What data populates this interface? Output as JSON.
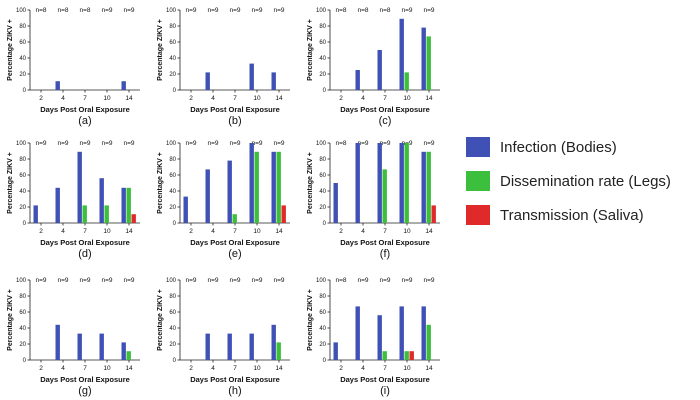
{
  "figure": {
    "panels_note": "3x3 grid of bar charts"
  },
  "colors": {
    "infection": "#3f51b5",
    "dissemination": "#3cbf3c",
    "transmission": "#e02a2a"
  },
  "legend": [
    {
      "key": "infection",
      "label": "Infection (Bodies)"
    },
    {
      "key": "dissemination",
      "label": "Dissemination rate (Legs)"
    },
    {
      "key": "transmission",
      "label": "Transmission (Saliva)"
    }
  ],
  "chart_data": [
    {
      "type": "bar",
      "panel": "(a)",
      "categories": [
        "2",
        "4",
        "7",
        "10",
        "14"
      ],
      "n_labels": [
        "n=8",
        "n=8",
        "n=8",
        "n=9",
        "n=9"
      ],
      "series": [
        {
          "name": "Infection (Bodies)",
          "values": [
            0,
            11,
            0,
            0,
            11
          ]
        },
        {
          "name": "Dissemination rate (Legs)",
          "values": [
            0,
            0,
            0,
            0,
            0
          ]
        },
        {
          "name": "Transmission (Saliva)",
          "values": [
            0,
            0,
            0,
            0,
            0
          ]
        }
      ],
      "xlabel": "Days Post Oral Exposure",
      "ylabel": "Percentage ZIKV +",
      "ylim": [
        0,
        100
      ],
      "yticks": [
        "0",
        "20",
        "40",
        "60",
        "80",
        "100"
      ]
    },
    {
      "type": "bar",
      "panel": "(b)",
      "categories": [
        "2",
        "4",
        "7",
        "10",
        "14"
      ],
      "n_labels": [
        "n=9",
        "n=9",
        "n=9",
        "n=9",
        "n=9"
      ],
      "series": [
        {
          "name": "Infection (Bodies)",
          "values": [
            0,
            22,
            0,
            33,
            22
          ]
        },
        {
          "name": "Dissemination rate (Legs)",
          "values": [
            0,
            0,
            0,
            0,
            0
          ]
        },
        {
          "name": "Transmission (Saliva)",
          "values": [
            0,
            0,
            0,
            0,
            0
          ]
        }
      ],
      "xlabel": "Days Post Oral Exposure",
      "ylabel": "Percentage ZIKV +",
      "ylim": [
        0,
        100
      ],
      "yticks": [
        "0",
        "20",
        "40",
        "60",
        "80",
        "100"
      ]
    },
    {
      "type": "bar",
      "panel": "(c)",
      "categories": [
        "2",
        "4",
        "7",
        "10",
        "14"
      ],
      "n_labels": [
        "n=8",
        "n=8",
        "n=8",
        "n=9",
        "n=9"
      ],
      "series": [
        {
          "name": "Infection (Bodies)",
          "values": [
            0,
            25,
            50,
            89,
            78
          ]
        },
        {
          "name": "Dissemination rate (Legs)",
          "values": [
            0,
            0,
            0,
            22,
            67
          ]
        },
        {
          "name": "Transmission (Saliva)",
          "values": [
            0,
            0,
            0,
            0,
            0
          ]
        }
      ],
      "xlabel": "Days Post Oral Exposure",
      "ylabel": "Percentage ZIKV +",
      "ylim": [
        0,
        100
      ],
      "yticks": [
        "0",
        "20",
        "40",
        "60",
        "80",
        "100"
      ]
    },
    {
      "type": "bar",
      "panel": "(d)",
      "categories": [
        "2",
        "4",
        "7",
        "10",
        "14"
      ],
      "n_labels": [
        "n=9",
        "n=9",
        "n=9",
        "n=9",
        "n=9"
      ],
      "series": [
        {
          "name": "Infection (Bodies)",
          "values": [
            22,
            44,
            89,
            56,
            44
          ]
        },
        {
          "name": "Dissemination rate (Legs)",
          "values": [
            0,
            0,
            22,
            22,
            44
          ]
        },
        {
          "name": "Transmission (Saliva)",
          "values": [
            0,
            0,
            0,
            0,
            11
          ]
        }
      ],
      "xlabel": "Days Post Oral Exposure",
      "ylabel": "Percentage ZIKV +",
      "ylim": [
        0,
        100
      ],
      "yticks": [
        "0",
        "20",
        "40",
        "60",
        "80",
        "100"
      ]
    },
    {
      "type": "bar",
      "panel": "(e)",
      "categories": [
        "2",
        "4",
        "7",
        "10",
        "14"
      ],
      "n_labels": [
        "n=9",
        "n=9",
        "n=9",
        "n=9",
        "n=9"
      ],
      "series": [
        {
          "name": "Infection (Bodies)",
          "values": [
            33,
            67,
            78,
            100,
            89
          ]
        },
        {
          "name": "Dissemination rate (Legs)",
          "values": [
            0,
            0,
            11,
            89,
            89
          ]
        },
        {
          "name": "Transmission (Saliva)",
          "values": [
            0,
            0,
            0,
            0,
            22
          ]
        }
      ],
      "xlabel": "Days Post Oral Exposure",
      "ylabel": "Percentage ZIKV +",
      "ylim": [
        0,
        100
      ],
      "yticks": [
        "0",
        "20",
        "40",
        "60",
        "80",
        "100"
      ]
    },
    {
      "type": "bar",
      "panel": "(f)",
      "categories": [
        "2",
        "4",
        "7",
        "10",
        "14"
      ],
      "n_labels": [
        "n=8",
        "n=9",
        "n=9",
        "n=9",
        "n=9"
      ],
      "series": [
        {
          "name": "Infection (Bodies)",
          "values": [
            50,
            100,
            100,
            100,
            89
          ]
        },
        {
          "name": "Dissemination rate (Legs)",
          "values": [
            0,
            0,
            67,
            100,
            89
          ]
        },
        {
          "name": "Transmission (Saliva)",
          "values": [
            0,
            0,
            0,
            0,
            22
          ]
        }
      ],
      "xlabel": "Days Post Oral Exposure",
      "ylabel": "Percentage ZIKV +",
      "ylim": [
        0,
        100
      ],
      "yticks": [
        "0",
        "20",
        "40",
        "60",
        "80",
        "100"
      ]
    },
    {
      "type": "bar",
      "panel": "(g)",
      "categories": [
        "2",
        "4",
        "7",
        "10",
        "14"
      ],
      "n_labels": [
        "n=9",
        "n=9",
        "n=9",
        "n=9",
        "n=9"
      ],
      "series": [
        {
          "name": "Infection (Bodies)",
          "values": [
            0,
            44,
            33,
            33,
            22
          ]
        },
        {
          "name": "Dissemination rate (Legs)",
          "values": [
            0,
            0,
            0,
            0,
            11
          ]
        },
        {
          "name": "Transmission (Saliva)",
          "values": [
            0,
            0,
            0,
            0,
            0
          ]
        }
      ],
      "xlabel": "Days Post Oral Exposure",
      "ylabel": "Percentage ZIKV +",
      "ylim": [
        0,
        100
      ],
      "yticks": [
        "0",
        "20",
        "40",
        "60",
        "80",
        "100"
      ]
    },
    {
      "type": "bar",
      "panel": "(h)",
      "categories": [
        "2",
        "4",
        "7",
        "10",
        "14"
      ],
      "n_labels": [
        "n=9",
        "n=9",
        "n=9",
        "n=9",
        "n=9"
      ],
      "series": [
        {
          "name": "Infection (Bodies)",
          "values": [
            0,
            33,
            33,
            33,
            44
          ]
        },
        {
          "name": "Dissemination rate (Legs)",
          "values": [
            0,
            0,
            0,
            0,
            22
          ]
        },
        {
          "name": "Transmission (Saliva)",
          "values": [
            0,
            0,
            0,
            0,
            0
          ]
        }
      ],
      "xlabel": "Days Post Oral Exposure",
      "ylabel": "Percentage ZIKV +",
      "ylim": [
        0,
        100
      ],
      "yticks": [
        "0",
        "20",
        "40",
        "60",
        "80",
        "100"
      ]
    },
    {
      "type": "bar",
      "panel": "(i)",
      "categories": [
        "2",
        "4",
        "7",
        "10",
        "14"
      ],
      "n_labels": [
        "n=8",
        "n=9",
        "n=9",
        "n=9",
        "n=9"
      ],
      "series": [
        {
          "name": "Infection (Bodies)",
          "values": [
            22,
            67,
            56,
            67,
            67
          ]
        },
        {
          "name": "Dissemination rate (Legs)",
          "values": [
            0,
            0,
            11,
            11,
            44
          ]
        },
        {
          "name": "Transmission (Saliva)",
          "values": [
            0,
            0,
            0,
            11,
            0
          ]
        }
      ],
      "xlabel": "Days Post Oral Exposure",
      "ylabel": "Percentage ZIKV +",
      "ylim": [
        0,
        100
      ],
      "yticks": [
        "0",
        "20",
        "40",
        "60",
        "80",
        "100"
      ]
    }
  ]
}
